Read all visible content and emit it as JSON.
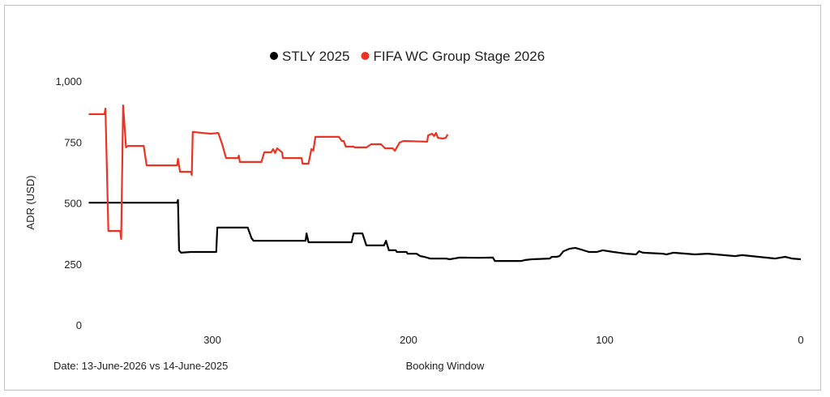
{
  "chart_data": {
    "type": "line",
    "title": "",
    "xlabel": "Booking Window",
    "ylabel": "ADR (USD)",
    "footnote": "Date: 13-June-2026 vs 14-June-2025",
    "xlim": [
      363,
      0
    ],
    "x_reversed": true,
    "ylim": [
      0,
      1000
    ],
    "xticks": [
      300,
      200,
      100,
      0
    ],
    "xtick_labels": [
      "300",
      "200",
      "100",
      "0"
    ],
    "yticks": [
      0,
      250,
      500,
      750,
      1000
    ],
    "ytick_labels": [
      "0",
      "250",
      "500",
      "750",
      "1,000"
    ],
    "grid": false,
    "legend_position": "top-center",
    "series": [
      {
        "name": "STLY 2025",
        "color": "#000000",
        "points": [
          [
            363,
            501
          ],
          [
            318,
            501
          ],
          [
            317.5,
            512
          ],
          [
            317,
            306
          ],
          [
            316,
            296
          ],
          [
            311,
            299
          ],
          [
            298,
            299
          ],
          [
            297.5,
            399
          ],
          [
            282,
            399
          ],
          [
            280,
            355
          ],
          [
            279,
            345
          ],
          [
            252.5,
            345
          ],
          [
            252,
            375
          ],
          [
            251,
            339
          ],
          [
            242.5,
            339
          ],
          [
            229,
            339
          ],
          [
            228,
            375
          ],
          [
            223.5,
            375
          ],
          [
            221.5,
            326
          ],
          [
            212.5,
            326
          ],
          [
            211.5,
            345
          ],
          [
            210,
            306
          ],
          [
            206.5,
            306
          ],
          [
            206,
            299
          ],
          [
            201,
            299
          ],
          [
            200.5,
            292
          ],
          [
            196,
            292
          ],
          [
            194,
            282
          ],
          [
            192,
            279
          ],
          [
            189,
            272
          ],
          [
            181,
            272
          ],
          [
            179,
            269
          ],
          [
            174,
            276
          ],
          [
            164.5,
            275
          ],
          [
            157,
            276
          ],
          [
            156,
            262
          ],
          [
            142.5,
            262
          ],
          [
            140.5,
            266
          ],
          [
            137,
            269
          ],
          [
            128,
            272
          ],
          [
            127,
            279
          ],
          [
            124.5,
            279
          ],
          [
            123,
            282
          ],
          [
            121,
            302
          ],
          [
            118,
            312
          ],
          [
            115,
            316
          ],
          [
            112,
            309
          ],
          [
            108,
            299
          ],
          [
            104,
            299
          ],
          [
            101,
            306
          ],
          [
            95.5,
            299
          ],
          [
            89,
            292
          ],
          [
            84,
            289
          ],
          [
            82.5,
            302
          ],
          [
            80.5,
            296
          ],
          [
            70.5,
            292
          ],
          [
            68.5,
            289
          ],
          [
            65,
            296
          ],
          [
            54,
            289
          ],
          [
            47.5,
            292
          ],
          [
            33.5,
            282
          ],
          [
            30,
            286
          ],
          [
            13,
            272
          ],
          [
            8,
            279
          ],
          [
            4.5,
            272
          ],
          [
            0,
            269
          ]
        ]
      },
      {
        "name": "FIFA WC Group Stage 2026",
        "color": "#ea3323",
        "points": [
          [
            363,
            864
          ],
          [
            355,
            864
          ],
          [
            354.5,
            887
          ],
          [
            353,
            385
          ],
          [
            347,
            385
          ],
          [
            346.5,
            352
          ],
          [
            345.5,
            900
          ],
          [
            344,
            728
          ],
          [
            343,
            734
          ],
          [
            335,
            734
          ],
          [
            333.5,
            654
          ],
          [
            318,
            654
          ],
          [
            317.5,
            681
          ],
          [
            316.5,
            628
          ],
          [
            311,
            628
          ],
          [
            310.5,
            615
          ],
          [
            310,
            791
          ],
          [
            301,
            784
          ],
          [
            297,
            787
          ],
          [
            295,
            741
          ],
          [
            293,
            684
          ],
          [
            287,
            684
          ],
          [
            286.5,
            694
          ],
          [
            286,
            668
          ],
          [
            275,
            668
          ],
          [
            273.5,
            708
          ],
          [
            270,
            708
          ],
          [
            269,
            721
          ],
          [
            268,
            705
          ],
          [
            267,
            724
          ],
          [
            264.5,
            708
          ],
          [
            264,
            684
          ],
          [
            254.5,
            684
          ],
          [
            254,
            661
          ],
          [
            251,
            661
          ],
          [
            249.5,
            721
          ],
          [
            248.5,
            715
          ],
          [
            247.5,
            771
          ],
          [
            235.5,
            771
          ],
          [
            234,
            754
          ],
          [
            233,
            754
          ],
          [
            232,
            731
          ],
          [
            228,
            731
          ],
          [
            227.5,
            728
          ],
          [
            221.5,
            728
          ],
          [
            219,
            741
          ],
          [
            214,
            741
          ],
          [
            212,
            724
          ],
          [
            208,
            724
          ],
          [
            207,
            714
          ],
          [
            204.5,
            748
          ],
          [
            202.5,
            754
          ],
          [
            190.5,
            751
          ],
          [
            190,
            777
          ],
          [
            188,
            784
          ],
          [
            187,
            774
          ],
          [
            186,
            787
          ],
          [
            185,
            767
          ],
          [
            182.5,
            764
          ],
          [
            181,
            767
          ],
          [
            180,
            781
          ]
        ]
      }
    ]
  }
}
